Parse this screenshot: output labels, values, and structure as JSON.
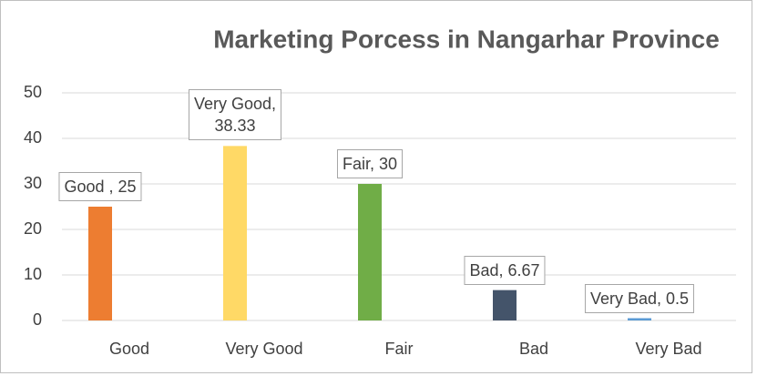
{
  "chart_data": {
    "type": "bar",
    "title": "Marketing Porcess in Nangarhar Province",
    "categories": [
      "Good",
      "Very Good",
      "Fair",
      "Bad",
      "Very Bad"
    ],
    "values": [
      25,
      38.33,
      30,
      6.67,
      0.5
    ],
    "value_labels": [
      "Good , 25",
      "Very Good,\n38.33",
      "Fair, 30",
      "Bad, 6.67",
      "Very Bad, 0.5"
    ],
    "colors": [
      "#ed7d31",
      "#ffd966",
      "#70ad47",
      "#44546a",
      "#5b9bd5"
    ],
    "ylim": [
      0,
      50
    ],
    "yticks": [
      0,
      10,
      20,
      30,
      40,
      50
    ],
    "grid": true
  }
}
